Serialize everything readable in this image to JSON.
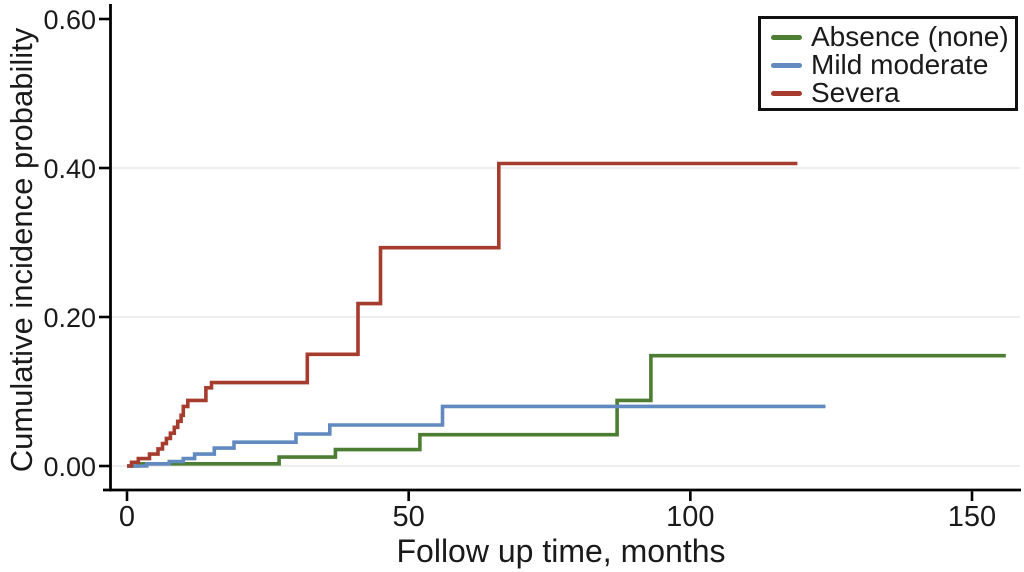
{
  "figure": {
    "y_axis_title": "Cumulative incidence probability",
    "x_axis_title": "Follow up time, months"
  },
  "legend": {
    "position": "top-right",
    "items": [
      {
        "label": "Absence (none)",
        "color": "#4c7d33"
      },
      {
        "label": "Mild moderate",
        "color": "#608ac0"
      },
      {
        "label": "Severa",
        "color": "#a63c2d"
      }
    ]
  },
  "colors": {
    "axis": "#000000",
    "grid": "#e8e8e8",
    "text": "#1a1a1a",
    "background": "#ffffff"
  },
  "chart_data": {
    "type": "line",
    "subtype": "step-cumulative-incidence",
    "title": "",
    "xlabel": "Follow up time, months",
    "ylabel": "Cumulative incidence probability",
    "xlim": [
      0,
      158
    ],
    "ylim": [
      0,
      0.6
    ],
    "x_tick_values": [
      0,
      50,
      100,
      150
    ],
    "x_tick_labels": [
      "0",
      "50",
      "100",
      "150"
    ],
    "y_tick_values": [
      0.0,
      0.2,
      0.4,
      0.6
    ],
    "y_tick_labels": [
      "0.00",
      "0.20",
      "0.40",
      "0.60"
    ],
    "gridlines_y": [
      0.0,
      0.2,
      0.4
    ],
    "legend_position": "top-right",
    "series": [
      {
        "name": "Absence (none)",
        "color": "#4c7d33",
        "end_x": 156,
        "steps": [
          [
            0,
            0.0
          ],
          [
            2,
            0.003
          ],
          [
            27,
            0.012
          ],
          [
            37,
            0.022
          ],
          [
            52,
            0.042
          ],
          [
            87,
            0.088
          ],
          [
            93,
            0.148
          ]
        ]
      },
      {
        "name": "Mild moderate",
        "color": "#608ac0",
        "end_x": 124,
        "steps": [
          [
            0,
            0.0
          ],
          [
            3.5,
            0.003
          ],
          [
            7.5,
            0.006
          ],
          [
            10,
            0.01
          ],
          [
            12,
            0.016
          ],
          [
            15.5,
            0.024
          ],
          [
            19,
            0.032
          ],
          [
            30,
            0.043
          ],
          [
            36,
            0.055
          ],
          [
            56,
            0.08
          ]
        ]
      },
      {
        "name": "Severa",
        "color": "#a63c2d",
        "end_x": 119,
        "steps": [
          [
            0,
            0.0
          ],
          [
            0.8,
            0.005
          ],
          [
            2,
            0.01
          ],
          [
            4,
            0.016
          ],
          [
            5.5,
            0.023
          ],
          [
            6.3,
            0.03
          ],
          [
            7,
            0.037
          ],
          [
            7.7,
            0.044
          ],
          [
            8.4,
            0.052
          ],
          [
            9,
            0.06
          ],
          [
            9.6,
            0.068
          ],
          [
            10,
            0.08
          ],
          [
            10.8,
            0.088
          ],
          [
            14,
            0.105
          ],
          [
            15,
            0.112
          ],
          [
            32,
            0.15
          ],
          [
            41,
            0.218
          ],
          [
            45,
            0.293
          ],
          [
            66,
            0.406
          ]
        ]
      }
    ]
  }
}
